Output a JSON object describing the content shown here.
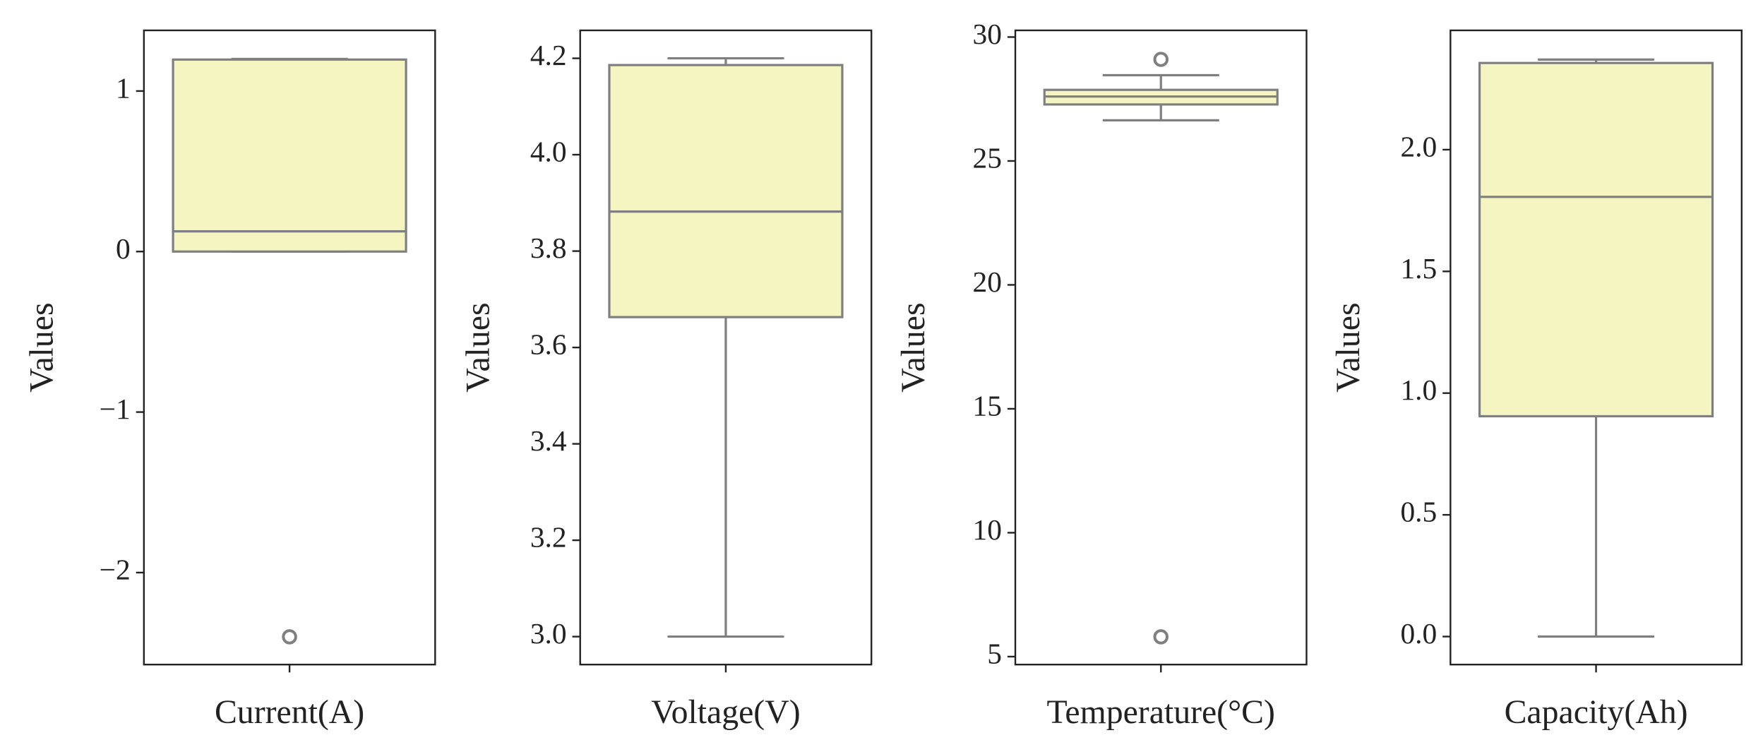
{
  "chart_data": [
    {
      "type": "box",
      "categories": [
        "Current(A)"
      ],
      "ylabel": "Values",
      "color": "#f4f5c1",
      "edge_color": "#7f7f7f",
      "ylim": [
        -2.573,
        1.378
      ],
      "yticks": [
        {
          "value": -2,
          "label": "−2"
        },
        {
          "value": -1,
          "label": "−1"
        },
        0,
        1
      ],
      "boxes": [
        {
          "whisker_low": 0,
          "q1": 0,
          "median": 0.126,
          "q3": 1.196,
          "whisker_high": 1.2,
          "outliers": [
            -2.4
          ]
        }
      ]
    },
    {
      "type": "box",
      "categories": [
        "Voltage(V)"
      ],
      "ylabel": "Values",
      "color": "#f4f5c1",
      "edge_color": "#7f7f7f",
      "ylim": [
        2.942,
        4.258
      ],
      "yticks": [
        {
          "value": 3,
          "label": "3.0"
        },
        3.2,
        3.4,
        3.6,
        3.8,
        {
          "value": 4,
          "label": "4.0"
        },
        4.2
      ],
      "boxes": [
        {
          "whisker_low": 3.0,
          "q1": 3.663,
          "median": 3.882,
          "q3": 4.186,
          "whisker_high": 4.2,
          "outliers": []
        }
      ]
    },
    {
      "type": "box",
      "categories": [
        "Temperature(°C)"
      ],
      "ylabel": "Values",
      "color": "#f4f5c1",
      "edge_color": "#7f7f7f",
      "ylim": [
        4.68,
        30.27
      ],
      "yticks": [
        5,
        10,
        15,
        20,
        25,
        30
      ],
      "boxes": [
        {
          "whisker_low": 26.64,
          "q1": 27.28,
          "median": 27.6,
          "q3": 27.87,
          "whisker_high": 28.46,
          "outliers": [
            29.1,
            5.8
          ]
        }
      ]
    },
    {
      "type": "box",
      "categories": [
        "Capacity(Ah)"
      ],
      "ylabel": "Values",
      "color": "#f4f5c1",
      "edge_color": "#7f7f7f",
      "ylim": [
        -0.115,
        2.49
      ],
      "yticks": [
        {
          "value": 0,
          "label": "0.0"
        },
        0.5,
        {
          "value": 1,
          "label": "1.0"
        },
        1.5,
        {
          "value": 2,
          "label": "2.0"
        }
      ],
      "boxes": [
        {
          "whisker_low": 0,
          "q1": 0.905,
          "median": 1.806,
          "q3": 2.356,
          "whisker_high": 2.37,
          "outliers": []
        }
      ]
    }
  ]
}
